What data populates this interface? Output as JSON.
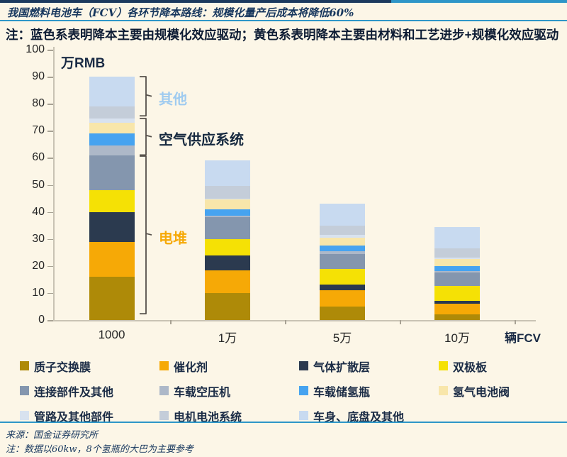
{
  "header": {
    "title": "我国燃料电池车（FCV）各环节降本路线：规模化量产后成本将降低60%",
    "note": "注：蓝色系表明降本主要由规模化效应驱动；黄色系表明降本主要由材料和工艺进步+规模化效应驱动"
  },
  "chart_data": {
    "type": "bar",
    "stacked": true,
    "ylabel": "万RMB",
    "xlabel": "辆FCV",
    "ylim": [
      0,
      100
    ],
    "ytick_step": 10,
    "grid": false,
    "legend_position": "bottom",
    "categories": [
      "1000",
      "1万",
      "5万",
      "10万"
    ],
    "series": [
      {
        "name": "质子交换膜",
        "color": "#AE8A08",
        "values": [
          16,
          10,
          5,
          2
        ]
      },
      {
        "name": "催化剂",
        "color": "#F6A906",
        "values": [
          13,
          8.5,
          6,
          4
        ]
      },
      {
        "name": "气体扩散层",
        "color": "#2B3A4F",
        "values": [
          11,
          5.5,
          2,
          1
        ]
      },
      {
        "name": "双极板",
        "color": "#F5E105",
        "values": [
          8,
          6,
          6,
          5.5
        ]
      },
      {
        "name": "连接部件及其他",
        "color": "#8496AE",
        "values": [
          13,
          8,
          5.5,
          5
        ]
      },
      {
        "name": "车载空压机",
        "color": "#ADB8C8",
        "values": [
          3.5,
          0.5,
          1,
          0.5
        ]
      },
      {
        "name": "车载储氢瓶",
        "color": "#46A3F0",
        "values": [
          4.5,
          2.5,
          2,
          2
        ]
      },
      {
        "name": "氢气电池阀",
        "color": "#F8E6AA",
        "values": [
          4,
          3.5,
          3,
          2.5
        ]
      },
      {
        "name": "管路及其他部件",
        "color": "#D8E2EF",
        "values": [
          1.5,
          0.5,
          1,
          0.5
        ]
      },
      {
        "name": "电机电池系统",
        "color": "#C4CDD9",
        "values": [
          4.5,
          4.5,
          3.5,
          3.5
        ]
      },
      {
        "name": "车身、底盘及其他",
        "color": "#C8DAF0",
        "values": [
          11,
          9.5,
          8,
          8
        ]
      }
    ],
    "totals": [
      90,
      59,
      43,
      34.5
    ],
    "annotations": [
      {
        "label": "其他",
        "color": "#9FCBF0",
        "from": 75.5,
        "to": 90
      },
      {
        "label": "空气供应系统",
        "color": "#16293F",
        "from": 61,
        "to": 74.5
      },
      {
        "label": "电堆",
        "color": "#F6A906",
        "from": 2.2,
        "to": 60.5
      }
    ]
  },
  "footer": {
    "source": "来源：国金证券研究所",
    "note": "注：数据以60kw，8个氢瓶的大巴为主要参考"
  }
}
